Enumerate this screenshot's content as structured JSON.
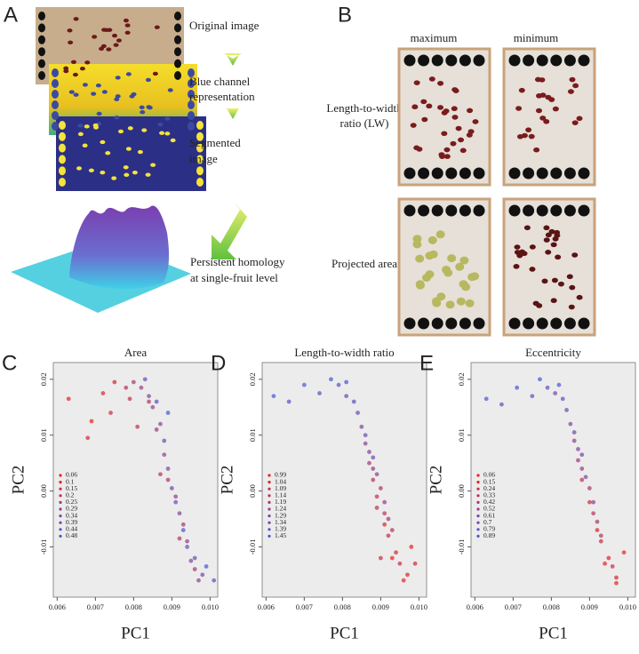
{
  "panel_a": {
    "label": "A",
    "steps": [
      {
        "lines": [
          "Original image"
        ]
      },
      {
        "lines": [
          "Blue channel",
          "representation"
        ]
      },
      {
        "lines": [
          "Segmented",
          "image"
        ]
      },
      {
        "lines": [
          "Persistent homology",
          "at single-fruit level"
        ]
      }
    ]
  },
  "panel_b": {
    "label": "B",
    "columns": [
      "maximum",
      "minimum"
    ],
    "rows": [
      {
        "lines": [
          "Length-to-width",
          "ratio (LW)"
        ]
      },
      {
        "lines": [
          "Projected area"
        ]
      }
    ]
  },
  "chart_data": [
    {
      "type": "scatter",
      "label": "C",
      "title": "Area",
      "xlabel": "PC1",
      "ylabel": "PC2",
      "xlim": [
        0.0059,
        0.0102
      ],
      "ylim": [
        -0.019,
        0.023
      ],
      "xticks": [
        0.006,
        0.007,
        0.008,
        0.009,
        {
          "value": 0.01,
          "label": "0.010"
        }
      ],
      "yticks": [
        -0.01,
        {
          "value": 0,
          "label": "0.00"
        },
        0.01,
        0.02
      ],
      "series": [
        {
          "name": "0.06",
          "color": "#e8221e",
          "x": [
            0.0063,
            0.0069
          ],
          "values": [
            0.0165,
            0.0125
          ]
        },
        {
          "name": "0.1",
          "color": "#d9262e",
          "x": [
            0.0068,
            0.0072,
            0.0075
          ],
          "values": [
            0.0095,
            0.0175,
            0.0195
          ]
        },
        {
          "name": "0.15",
          "color": "#c92c44",
          "x": [
            0.0074,
            0.0079,
            0.0081
          ],
          "values": [
            0.014,
            0.0165,
            0.0115
          ]
        },
        {
          "name": "0.2",
          "color": "#b8325a",
          "x": [
            0.0078,
            0.0084,
            0.0087,
            0.0092
          ],
          "values": [
            0.0185,
            0.016,
            0.003,
            -0.0085
          ]
        },
        {
          "name": "0.25",
          "color": "#a53870",
          "x": [
            0.008,
            0.0086,
            0.0089,
            0.0093,
            0.0096
          ],
          "values": [
            0.0195,
            0.011,
            0.002,
            -0.006,
            -0.014
          ]
        },
        {
          "name": "0.29",
          "color": "#923e86",
          "x": [
            0.0082,
            0.0085,
            0.0088,
            0.0091,
            0.0094,
            0.0097
          ],
          "values": [
            0.0185,
            0.015,
            0.0065,
            -0.001,
            -0.009,
            -0.016
          ]
        },
        {
          "name": "0.34",
          "color": "#80449b",
          "x": [
            0.0084,
            0.0087,
            0.0089,
            0.0092,
            0.0095
          ],
          "values": [
            0.017,
            0.012,
            0.004,
            -0.004,
            -0.0125
          ]
        },
        {
          "name": "0.39",
          "color": "#6e4aaf",
          "x": [
            0.0083,
            0.0088,
            0.009,
            0.0094,
            0.0098
          ],
          "values": [
            0.02,
            0.009,
            0.0005,
            -0.01,
            -0.015
          ]
        },
        {
          "name": "0.44",
          "color": "#5c50c2",
          "x": [
            0.0086,
            0.0091,
            0.0096,
            0.0101
          ],
          "values": [
            0.016,
            -0.002,
            -0.012,
            -0.016
          ]
        },
        {
          "name": "0.48",
          "color": "#4a56d4",
          "x": [
            0.0089,
            0.0093,
            0.0099
          ],
          "values": [
            0.014,
            -0.007,
            -0.0135
          ]
        }
      ]
    },
    {
      "type": "scatter",
      "label": "D",
      "title": "Length-to-width ratio",
      "xlabel": "PC1",
      "ylabel": "PC2",
      "xlim": [
        0.0059,
        0.0102
      ],
      "ylim": [
        -0.019,
        0.023
      ],
      "xticks": [
        0.006,
        0.007,
        0.008,
        0.009,
        {
          "value": 0.01,
          "label": "0.010"
        }
      ],
      "yticks": [
        -0.01,
        {
          "value": 0,
          "label": "0.00"
        },
        0.01,
        0.02
      ],
      "series": [
        {
          "name": "0.99",
          "color": "#e8221e",
          "x": [
            0.0093,
            0.0096,
            0.0098
          ],
          "values": [
            -0.012,
            -0.016,
            -0.01
          ]
        },
        {
          "name": "1.04",
          "color": "#d9262e",
          "x": [
            0.0091,
            0.0094,
            0.0097,
            0.0099
          ],
          "values": [
            -0.006,
            -0.011,
            -0.015,
            -0.013
          ]
        },
        {
          "name": "1.09",
          "color": "#c92c44",
          "x": [
            0.0089,
            0.0092,
            0.0095,
            0.009
          ],
          "values": [
            -0.001,
            -0.008,
            -0.013,
            -0.012
          ]
        },
        {
          "name": "1.14",
          "color": "#b8325a",
          "x": [
            0.0088,
            0.0091,
            0.0093,
            0.0089
          ],
          "values": [
            0.002,
            -0.004,
            -0.007,
            -0.003
          ]
        },
        {
          "name": "1.19",
          "color": "#a53870",
          "x": [
            0.0087,
            0.009,
            0.0092
          ],
          "values": [
            0.005,
            0.0005,
            -0.005
          ]
        },
        {
          "name": "1.24",
          "color": "#923e86",
          "x": [
            0.0086,
            0.0088,
            0.0091
          ],
          "values": [
            0.0085,
            0.004,
            -0.002
          ]
        },
        {
          "name": "1.29",
          "color": "#80449b",
          "x": [
            0.0085,
            0.0087,
            0.0089
          ],
          "values": [
            0.0115,
            0.007,
            0.003
          ]
        },
        {
          "name": "1.34",
          "color": "#6e4aaf",
          "x": [
            0.0081,
            0.0084,
            0.0086,
            0.0088
          ],
          "values": [
            0.017,
            0.014,
            0.01,
            0.006
          ]
        },
        {
          "name": "1.39",
          "color": "#5c50c2",
          "x": [
            0.0066,
            0.0074,
            0.0079,
            0.0083
          ],
          "values": [
            0.016,
            0.0175,
            0.019,
            0.016
          ]
        },
        {
          "name": "1.45",
          "color": "#4a56d4",
          "x": [
            0.0062,
            0.007,
            0.0077,
            0.0081
          ],
          "values": [
            0.017,
            0.019,
            0.02,
            0.0195
          ]
        }
      ]
    },
    {
      "type": "scatter",
      "label": "E",
      "title": "Eccentricity",
      "xlabel": "PC1",
      "ylabel": "PC2",
      "xlim": [
        0.0059,
        0.0102
      ],
      "ylim": [
        -0.019,
        0.023
      ],
      "xticks": [
        0.006,
        0.007,
        0.008,
        0.009,
        {
          "value": 0.01,
          "label": "0.010"
        }
      ],
      "yticks": [
        -0.01,
        {
          "value": 0,
          "label": "0.00"
        },
        0.01,
        0.02
      ],
      "series": [
        {
          "name": "0.06",
          "color": "#e8221e",
          "x": [
            0.0094,
            0.0097,
            0.0099
          ],
          "values": [
            -0.013,
            -0.0165,
            -0.011
          ]
        },
        {
          "name": "0.15",
          "color": "#d9262e",
          "x": [
            0.0092,
            0.0095,
            0.0097
          ],
          "values": [
            -0.007,
            -0.012,
            -0.0155
          ]
        },
        {
          "name": "0.24",
          "color": "#c92c44",
          "x": [
            0.009,
            0.0093,
            0.0096
          ],
          "values": [
            -0.002,
            -0.009,
            -0.0135
          ]
        },
        {
          "name": "0.33",
          "color": "#b8325a",
          "x": [
            0.0088,
            0.0091,
            0.0093
          ],
          "values": [
            0.002,
            -0.004,
            -0.008
          ]
        },
        {
          "name": "0.42",
          "color": "#a53870",
          "x": [
            0.0087,
            0.009,
            0.0092
          ],
          "values": [
            0.0055,
            0.0005,
            -0.0055
          ]
        },
        {
          "name": "0.52",
          "color": "#923e86",
          "x": [
            0.0086,
            0.0088,
            0.0091
          ],
          "values": [
            0.009,
            0.004,
            -0.002
          ]
        },
        {
          "name": "0.61",
          "color": "#80449b",
          "x": [
            0.0085,
            0.0087,
            0.0089
          ],
          "values": [
            0.012,
            0.0075,
            0.0025
          ]
        },
        {
          "name": "0.7",
          "color": "#6e4aaf",
          "x": [
            0.0081,
            0.0084,
            0.0086,
            0.0088
          ],
          "values": [
            0.0175,
            0.0145,
            0.0105,
            0.0065
          ]
        },
        {
          "name": "0.79",
          "color": "#5c50c2",
          "x": [
            0.0067,
            0.0075,
            0.0079,
            0.0083
          ],
          "values": [
            0.0155,
            0.017,
            0.0185,
            0.0165
          ]
        },
        {
          "name": "0.89",
          "color": "#4a56d4",
          "x": [
            0.0063,
            0.0071,
            0.0077,
            0.0082
          ],
          "values": [
            0.0165,
            0.0185,
            0.02,
            0.019
          ]
        }
      ]
    }
  ]
}
